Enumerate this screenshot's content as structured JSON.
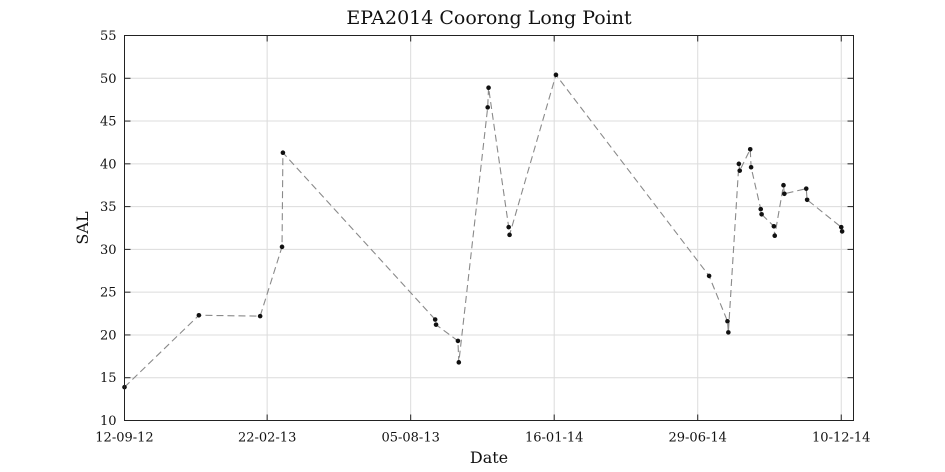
{
  "chart_data": {
    "type": "line",
    "title": "EPA2014 Coorong Long Point",
    "xlabel": "Date",
    "ylabel": "SAL",
    "ylim": [
      10,
      55
    ],
    "yticks": [
      10,
      15,
      20,
      25,
      30,
      35,
      40,
      45,
      50,
      55
    ],
    "xlim": [
      "2012-09-12",
      "2014-12-24"
    ],
    "xticks": [
      {
        "date": "2012-09-12",
        "label": "12-09-12"
      },
      {
        "date": "2013-02-22",
        "label": "22-02-13"
      },
      {
        "date": "2013-08-05",
        "label": "05-08-13"
      },
      {
        "date": "2014-01-16",
        "label": "16-01-14"
      },
      {
        "date": "2014-06-29",
        "label": "29-06-14"
      },
      {
        "date": "2014-12-10",
        "label": "10-12-14"
      }
    ],
    "grid": true,
    "line_color": "#8a8a8a",
    "marker_color": "#111111",
    "series": [
      {
        "points": [
          {
            "x": "2012-09-12",
            "y": 13.9
          },
          {
            "x": "2012-12-06",
            "y": 22.3
          },
          {
            "x": "2013-02-14",
            "y": 22.2
          },
          {
            "x": "2013-03-11",
            "y": 30.3
          },
          {
            "x": "2013-03-12",
            "y": 41.3
          },
          {
            "x": "2013-09-02",
            "y": 21.8
          },
          {
            "x": "2013-09-03",
            "y": 21.2
          },
          {
            "x": "2013-09-28",
            "y": 19.3
          },
          {
            "x": "2013-09-29",
            "y": 16.8
          },
          {
            "x": "2013-11-01",
            "y": 46.6
          },
          {
            "x": "2013-11-02",
            "y": 48.9
          },
          {
            "x": "2013-11-25",
            "y": 32.6
          },
          {
            "x": "2013-11-26",
            "y": 31.7
          },
          {
            "x": "2014-01-18",
            "y": 50.4
          },
          {
            "x": "2014-07-12",
            "y": 26.9
          },
          {
            "x": "2014-08-02",
            "y": 21.6
          },
          {
            "x": "2014-08-03",
            "y": 20.3
          },
          {
            "x": "2014-08-15",
            "y": 40.0
          },
          {
            "x": "2014-08-16",
            "y": 39.2
          },
          {
            "x": "2014-08-28",
            "y": 41.7
          },
          {
            "x": "2014-08-29",
            "y": 39.6
          },
          {
            "x": "2014-09-09",
            "y": 34.7
          },
          {
            "x": "2014-09-10",
            "y": 34.1
          },
          {
            "x": "2014-09-24",
            "y": 32.7
          },
          {
            "x": "2014-09-25",
            "y": 31.6
          },
          {
            "x": "2014-10-05",
            "y": 37.5
          },
          {
            "x": "2014-10-06",
            "y": 36.5
          },
          {
            "x": "2014-10-31",
            "y": 37.1
          },
          {
            "x": "2014-11-01",
            "y": 35.8
          },
          {
            "x": "2014-12-10",
            "y": 32.6
          },
          {
            "x": "2014-12-11",
            "y": 32.1
          }
        ]
      }
    ]
  }
}
